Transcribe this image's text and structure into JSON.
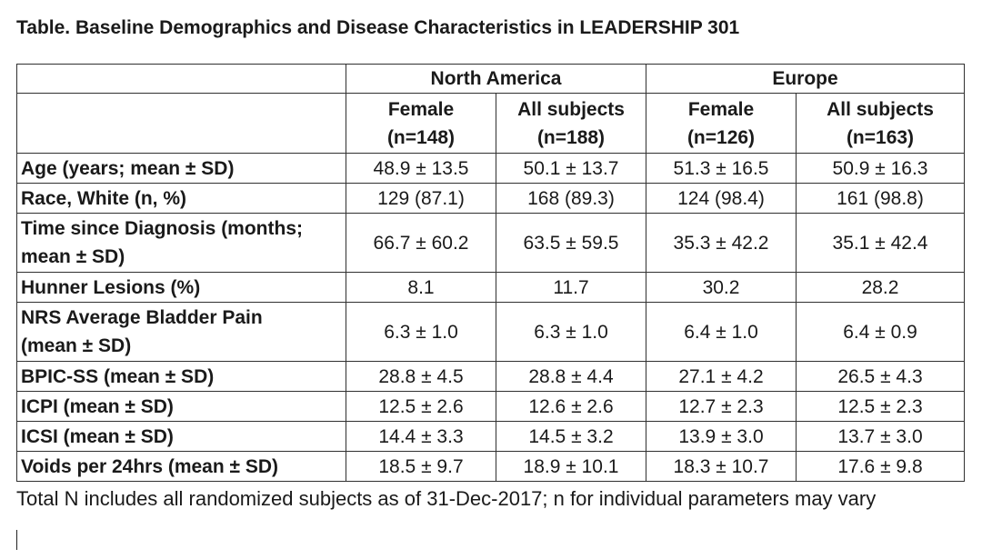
{
  "title": "Table. Baseline Demographics and Disease Characteristics in LEADERSHIP 301",
  "table": {
    "groups": [
      {
        "name": "North America",
        "columns": [
          "Female\n(n=148)",
          "All subjects\n(n=188)"
        ]
      },
      {
        "name": "Europe",
        "columns": [
          "Female\n(n=126)",
          "All subjects\n(n=163)"
        ]
      }
    ],
    "rows": [
      {
        "label": "Age (years; mean ± SD)",
        "values": [
          "48.9 ± 13.5",
          "50.1 ± 13.7",
          "51.3 ± 16.5",
          "50.9 ± 16.3"
        ]
      },
      {
        "label": "Race, White (n, %)",
        "values": [
          "129 (87.1)",
          "168 (89.3)",
          "124 (98.4)",
          "161 (98.8)"
        ]
      },
      {
        "label": "Time since Diagnosis (months;\nmean ± SD)",
        "values": [
          "66.7 ± 60.2",
          "63.5 ± 59.5",
          "35.3 ± 42.2",
          "35.1 ± 42.4"
        ]
      },
      {
        "label": "Hunner Lesions (%)",
        "values": [
          "8.1",
          "11.7",
          "30.2",
          "28.2"
        ]
      },
      {
        "label": "NRS Average Bladder Pain\n(mean ± SD)",
        "values": [
          "6.3 ± 1.0",
          "6.3 ± 1.0",
          "6.4 ± 1.0",
          "6.4 ± 0.9"
        ]
      },
      {
        "label": "BPIC-SS (mean ± SD)",
        "values": [
          "28.8 ± 4.5",
          "28.8 ± 4.4",
          "27.1 ± 4.2",
          "26.5 ± 4.3"
        ]
      },
      {
        "label": "ICPI (mean ± SD)",
        "values": [
          "12.5 ± 2.6",
          "12.6 ± 2.6",
          "12.7 ± 2.3",
          "12.5 ± 2.3"
        ]
      },
      {
        "label": "ICSI (mean ± SD)",
        "values": [
          "14.4 ± 3.3",
          "14.5 ± 3.2",
          "13.9 ± 3.0",
          "13.7 ± 3.0"
        ]
      },
      {
        "label": "Voids per 24hrs (mean ± SD)",
        "values": [
          "18.5 ± 9.7",
          "18.9 ± 10.1",
          "18.3 ± 10.7",
          "17.6 ± 9.8"
        ]
      }
    ]
  },
  "footnote": "Total N includes all randomized subjects as of 31-Dec-2017; n for individual parameters may vary"
}
